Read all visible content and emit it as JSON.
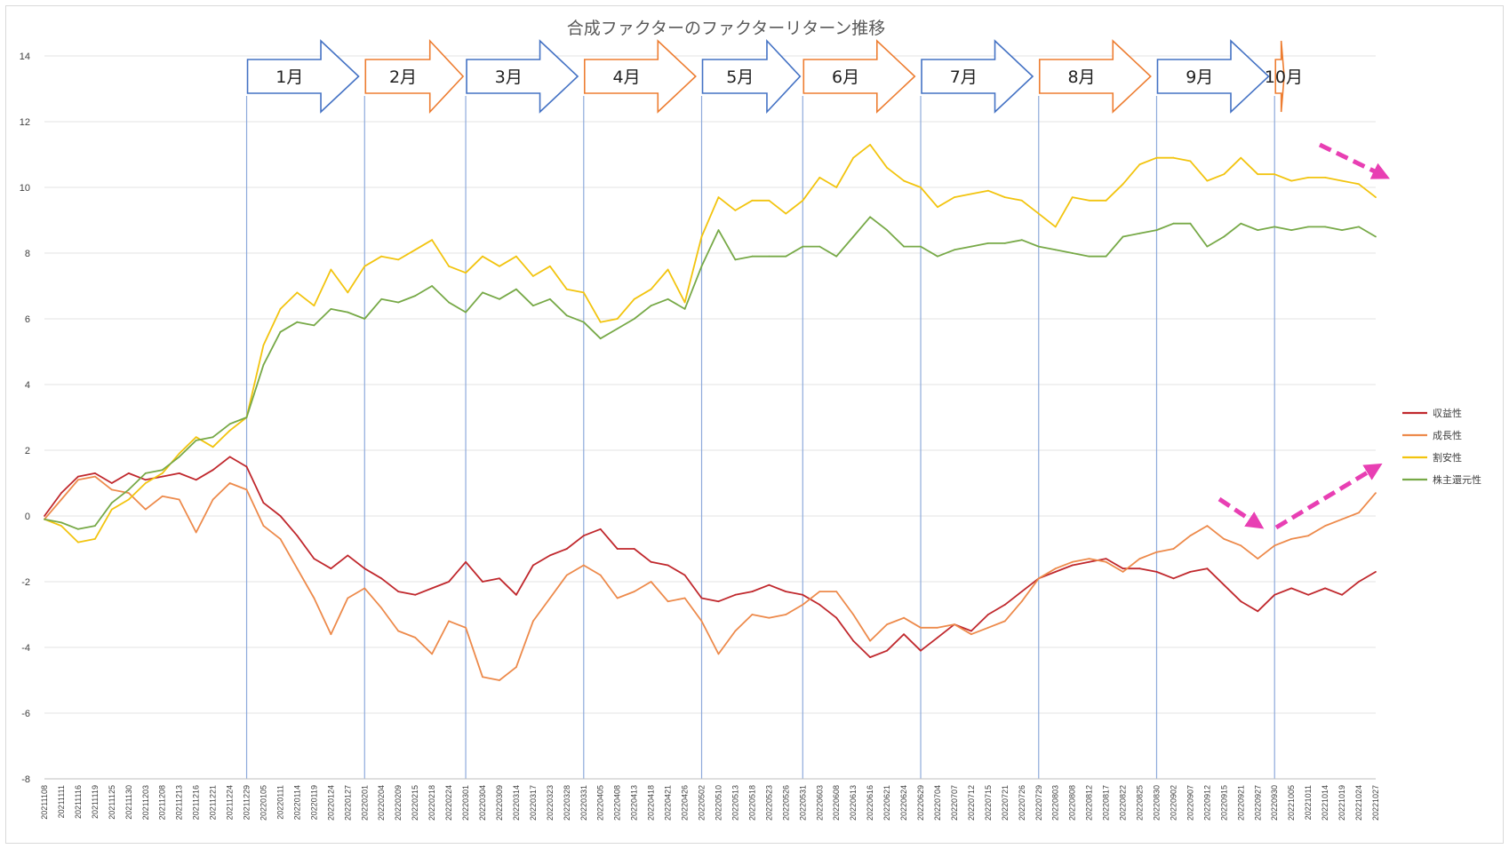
{
  "chart_data": {
    "type": "line",
    "title": "合成ファクターのファクターリターン推移",
    "xlabel": "",
    "ylabel": "",
    "ylim": [
      -8,
      14
    ],
    "yticks": [
      14,
      12,
      10,
      8,
      6,
      4,
      2,
      0,
      -2,
      -4,
      -6,
      -8
    ],
    "grid": true,
    "legend_position": "right",
    "x": [
      "20211108",
      "20211111",
      "20211116",
      "20211119",
      "20211125",
      "20211130",
      "20211203",
      "20211208",
      "20211213",
      "20211216",
      "20211221",
      "20211224",
      "20211229",
      "20220105",
      "20220111",
      "20220114",
      "20220119",
      "20220124",
      "20220127",
      "20220201",
      "20220204",
      "20220209",
      "20220215",
      "20220218",
      "20220224",
      "20220301",
      "20220304",
      "20220309",
      "20220314",
      "20220317",
      "20220323",
      "20220328",
      "20220331",
      "20220405",
      "20220408",
      "20220413",
      "20220418",
      "20220421",
      "20220426",
      "20220502",
      "20220510",
      "20220513",
      "20220518",
      "20220523",
      "20220526",
      "20220531",
      "20220603",
      "20220608",
      "20220613",
      "20220616",
      "20220621",
      "20220624",
      "20220629",
      "20220704",
      "20220707",
      "20220712",
      "20220715",
      "20220721",
      "20220726",
      "20220729",
      "20220803",
      "20220808",
      "20220812",
      "20220817",
      "20220822",
      "20220825",
      "20220830",
      "20220902",
      "20220907",
      "20220912",
      "20220915",
      "20220921",
      "20220927",
      "20220930",
      "20221005",
      "20221011",
      "20221014",
      "20221019",
      "20221024",
      "20221027"
    ],
    "series": [
      {
        "name": "収益性",
        "color": "#c0282d",
        "values": [
          0.0,
          0.7,
          1.2,
          1.3,
          1.0,
          1.3,
          1.1,
          1.2,
          1.3,
          1.1,
          1.4,
          1.8,
          1.5,
          0.4,
          0.0,
          -0.6,
          -1.3,
          -1.6,
          -1.2,
          -1.6,
          -1.9,
          -2.3,
          -2.4,
          -2.2,
          -2.0,
          -1.4,
          -2.0,
          -1.9,
          -2.4,
          -1.5,
          -1.2,
          -1.0,
          -0.6,
          -0.4,
          -1.0,
          -1.0,
          -1.4,
          -1.5,
          -1.8,
          -2.5,
          -2.6,
          -2.4,
          -2.3,
          -2.1,
          -2.3,
          -2.4,
          -2.7,
          -3.1,
          -3.8,
          -4.3,
          -4.1,
          -3.6,
          -4.1,
          -3.7,
          -3.3,
          -3.5,
          -3.0,
          -2.7,
          -2.3,
          -1.9,
          -1.7,
          -1.5,
          -1.4,
          -1.3,
          -1.6,
          -1.6,
          -1.7,
          -1.9,
          -1.7,
          -1.6,
          -2.1,
          -2.6,
          -2.9,
          -2.4,
          -2.2,
          -2.4,
          -2.2,
          -2.4,
          -2.0,
          -1.7
        ]
      },
      {
        "name": "成長性",
        "color": "#ed8a4b",
        "values": [
          -0.1,
          0.5,
          1.1,
          1.2,
          0.8,
          0.7,
          0.2,
          0.6,
          0.5,
          -0.5,
          0.5,
          1.0,
          0.8,
          -0.3,
          -0.7,
          -1.6,
          -2.5,
          -3.6,
          -2.5,
          -2.2,
          -2.8,
          -3.5,
          -3.7,
          -4.2,
          -3.2,
          -3.4,
          -4.9,
          -5.0,
          -4.6,
          -3.2,
          -2.5,
          -1.8,
          -1.5,
          -1.8,
          -2.5,
          -2.3,
          -2.0,
          -2.6,
          -2.5,
          -3.2,
          -4.2,
          -3.5,
          -3.0,
          -3.1,
          -3.0,
          -2.7,
          -2.3,
          -2.3,
          -3.0,
          -3.8,
          -3.3,
          -3.1,
          -3.4,
          -3.4,
          -3.3,
          -3.6,
          -3.4,
          -3.2,
          -2.6,
          -1.9,
          -1.6,
          -1.4,
          -1.3,
          -1.4,
          -1.7,
          -1.3,
          -1.1,
          -1.0,
          -0.6,
          -0.3,
          -0.7,
          -0.9,
          -1.3,
          -0.9,
          -0.7,
          -0.6,
          -0.3,
          -0.1,
          0.1,
          0.7
        ]
      },
      {
        "name": "割安性",
        "color": "#f2c40f",
        "values": [
          -0.1,
          -0.3,
          -0.8,
          -0.7,
          0.2,
          0.5,
          1.0,
          1.3,
          1.9,
          2.4,
          2.1,
          2.6,
          3.0,
          5.2,
          6.3,
          6.8,
          6.4,
          7.5,
          6.8,
          7.6,
          7.9,
          7.8,
          8.1,
          8.4,
          7.6,
          7.4,
          7.9,
          7.6,
          7.9,
          7.3,
          7.6,
          6.9,
          6.8,
          5.9,
          6.0,
          6.6,
          6.9,
          7.5,
          6.5,
          8.5,
          9.7,
          9.3,
          9.6,
          9.6,
          9.2,
          9.6,
          10.3,
          10.0,
          10.9,
          11.3,
          10.6,
          10.2,
          10.0,
          9.4,
          9.7,
          9.8,
          9.9,
          9.7,
          9.6,
          9.2,
          8.8,
          9.7,
          9.6,
          9.6,
          10.1,
          10.7,
          10.9,
          10.9,
          10.8,
          10.2,
          10.4,
          10.9,
          10.4,
          10.4,
          10.2,
          10.3,
          10.3,
          10.2,
          10.1,
          9.7
        ]
      },
      {
        "name": "株主還元性",
        "color": "#77a947",
        "values": [
          -0.1,
          -0.2,
          -0.4,
          -0.3,
          0.4,
          0.8,
          1.3,
          1.4,
          1.8,
          2.3,
          2.4,
          2.8,
          3.0,
          4.6,
          5.6,
          5.9,
          5.8,
          6.3,
          6.2,
          6.0,
          6.6,
          6.5,
          6.7,
          7.0,
          6.5,
          6.2,
          6.8,
          6.6,
          6.9,
          6.4,
          6.6,
          6.1,
          5.9,
          5.4,
          5.7,
          6.0,
          6.4,
          6.6,
          6.3,
          7.6,
          8.7,
          7.8,
          7.9,
          7.9,
          7.9,
          8.2,
          8.2,
          7.9,
          8.5,
          9.1,
          8.7,
          8.2,
          8.2,
          7.9,
          8.1,
          8.2,
          8.3,
          8.3,
          8.4,
          8.2,
          8.1,
          8.0,
          7.9,
          7.9,
          8.5,
          8.6,
          8.7,
          8.9,
          8.9,
          8.2,
          8.5,
          8.9,
          8.7,
          8.8,
          8.7,
          8.8,
          8.8,
          8.7,
          8.8,
          8.5
        ]
      }
    ],
    "annotations": {
      "months": [
        {
          "label": "1月",
          "color": "#4472c4"
        },
        {
          "label": "2月",
          "color": "#ed7d31"
        },
        {
          "label": "3月",
          "color": "#4472c4"
        },
        {
          "label": "4月",
          "color": "#ed7d31"
        },
        {
          "label": "5月",
          "color": "#4472c4"
        },
        {
          "label": "6月",
          "color": "#ed7d31"
        },
        {
          "label": "7月",
          "color": "#4472c4"
        },
        {
          "label": "8月",
          "color": "#ed7d31"
        },
        {
          "label": "9月",
          "color": "#4472c4"
        },
        {
          "label": "10月",
          "color": "#ed7d31"
        }
      ],
      "month_boundaries": [
        "20211229",
        "20220201",
        "20220301",
        "20220331",
        "20220502",
        "20220531",
        "20220629",
        "20220729",
        "20220830",
        "20220930"
      ],
      "trend_arrows_color": "#e83fb3"
    }
  }
}
